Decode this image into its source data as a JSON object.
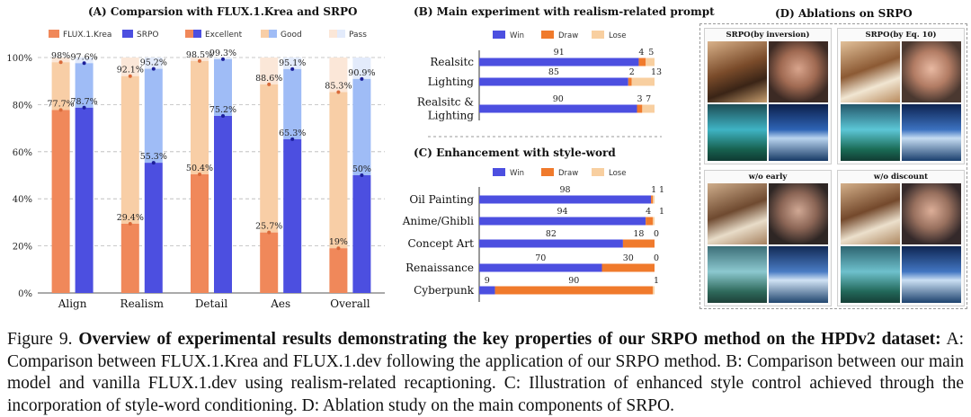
{
  "panelA": {
    "title": "(A)  Comparsion with FLUX.1.Krea and SRPO",
    "legend": [
      "FLUX.1.Krea",
      "SRPO",
      "Excellent",
      "Good",
      "Pass"
    ],
    "colors": {
      "flux": [
        "#f0885a",
        "#f8cea6",
        "#fbe7d8"
      ],
      "srpo": [
        "#4c4fe0",
        "#9fbcf6",
        "#e3ebfb"
      ]
    }
  },
  "panelB": {
    "title": "(B)  Main experiment with realism-related prompt",
    "legend": [
      "Win",
      "Draw",
      "Lose"
    ]
  },
  "panelC": {
    "title": "(C)  Enhancement with style-word",
    "legend": [
      "Win",
      "Draw",
      "Lose"
    ]
  },
  "panelD": {
    "title": "(D)    Ablations on SRPO",
    "boxes": [
      "SRPO(by inversion)",
      "SRPO(by Eq. 10)",
      "w/o early",
      "w/o discount"
    ]
  },
  "caption": {
    "label": "Figure 9.",
    "bold": "Overview of experimental results demonstrating the key properties of our SRPO method on the HPDv2 dataset:",
    "text": "A: Comparison between FLUX.1.Krea and FLUX.1.dev following the application of our SRPO method. B: Comparison between our main model and vanilla FLUX.1.dev using realism-related recaptioning. C: Illustration of enhanced style control achieved through the incorporation of style-word conditioning. D: Ablation study on the main components of SRPO."
  },
  "chart_data": [
    {
      "type": "bar",
      "title": "(A) Comparsion with FLUX.1.Krea and SRPO",
      "categories": [
        "Align",
        "Realism",
        "Detail",
        "Aes",
        "Overall"
      ],
      "ylim": [
        0,
        100
      ],
      "yticks": [
        "0%",
        "20%",
        "40%",
        "60%",
        "80%",
        "100%"
      ],
      "series": [
        {
          "name": "FLUX.1.Krea",
          "excellent": [
            77.7,
            29.4,
            50.4,
            25.7,
            19
          ],
          "good": [
            98,
            92.1,
            98.5,
            88.6,
            85.3
          ],
          "pass": [
            100,
            100,
            100,
            100,
            100
          ]
        },
        {
          "name": "SRPO",
          "excellent": [
            78.7,
            55.3,
            75.2,
            65.3,
            50
          ],
          "good": [
            97.6,
            95.2,
            99.3,
            95.1,
            90.9
          ],
          "pass": [
            100,
            100,
            100,
            100,
            100
          ]
        }
      ],
      "labels": {
        "flux_excellent": [
          "77.7%",
          "29.4%",
          "50.4%",
          "25.7%",
          "19%"
        ],
        "flux_good": [
          "98%",
          "92.1%",
          "98.5%",
          "88.6%",
          "85.3%"
        ],
        "srpo_excellent": [
          "78.7%",
          "55.3%",
          "75.2%",
          "65.3%",
          "50%"
        ],
        "srpo_good": [
          "97.6%",
          "95.2%",
          "99.3%",
          "95.1%",
          "90.9%"
        ]
      }
    },
    {
      "type": "bar",
      "title": "(B) Main experiment with realism-related prompt",
      "categories": [
        "Realsitc",
        "Lighting",
        "Realsitc & Lighting"
      ],
      "series": [
        {
          "name": "Win",
          "values": [
            91,
            85,
            90
          ]
        },
        {
          "name": "Draw",
          "values": [
            4,
            2,
            3
          ]
        },
        {
          "name": "Lose",
          "values": [
            5,
            13,
            7
          ]
        }
      ]
    },
    {
      "type": "bar",
      "title": "(C) Enhancement with style-word",
      "categories": [
        "Oil Painting",
        "Anime/Ghibli",
        "Concept Art",
        "Renaissance",
        "Cyberpunk"
      ],
      "series": [
        {
          "name": "Win",
          "values": [
            98,
            94,
            82,
            70,
            9
          ]
        },
        {
          "name": "Draw",
          "values": [
            1,
            4,
            18,
            30,
            90
          ]
        },
        {
          "name": "Lose",
          "values": [
            1,
            1,
            0,
            0,
            1
          ]
        }
      ]
    }
  ]
}
